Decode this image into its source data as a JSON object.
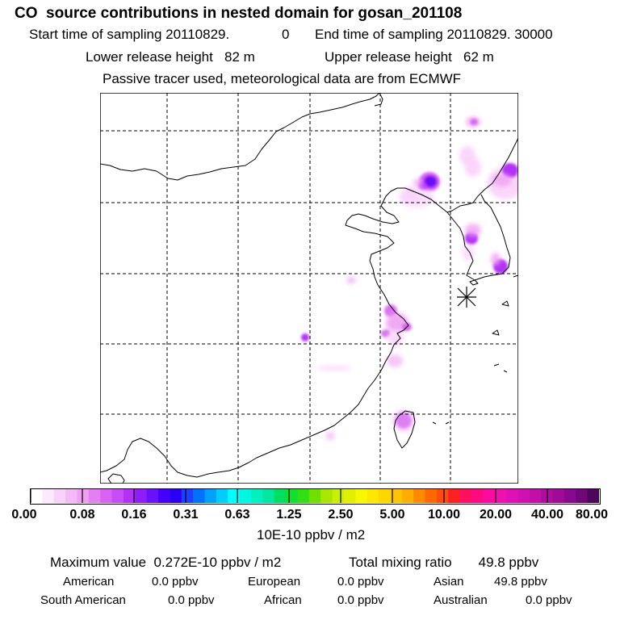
{
  "title": "CO  source contributions in nested domain for gosan_201108",
  "header": {
    "start_label": "Start time of sampling 20110829.",
    "start_hour": "0",
    "end_label": "End time of sampling 20110829. 30000",
    "lower_release": "Lower release height   82 m",
    "upper_release": "Upper release height   62 m",
    "tracer_note": "Passive tracer used, meteorological data are from ECMWF"
  },
  "colorbar": {
    "tick_labels": [
      "0.00",
      "0.08",
      "0.16",
      "0.31",
      "0.63",
      "1.25",
      "2.50",
      "5.00",
      "10.00",
      "20.00",
      "40.00",
      "80.00"
    ],
    "colors": [
      "#ffffff",
      "#fde9fd",
      "#f9d2fa",
      "#f4b9f6",
      "#efa0f2",
      "#e37ff0",
      "#d863f2",
      "#c84cf5",
      "#b330f8",
      "#8f1cfa",
      "#6a10fb",
      "#4500fc",
      "#2800f8",
      "#1b40ff",
      "#0072ff",
      "#00a0ff",
      "#00ccff",
      "#00ffff",
      "#00f8e0",
      "#00f0c0",
      "#00e8a0",
      "#00e060",
      "#10e030",
      "#30e010",
      "#70e000",
      "#a8e800",
      "#c8f000",
      "#e0f000",
      "#f8f800",
      "#ffe800",
      "#ffd800",
      "#ffc400",
      "#ffae00",
      "#ff8a00",
      "#ff6a00",
      "#ff4a10",
      "#ff2020",
      "#ff1060",
      "#ff0a80",
      "#ff0aa0",
      "#f010b0",
      "#e010b8",
      "#d010b0",
      "#c010a8",
      "#b00da0",
      "#a00a98",
      "#880890",
      "#700678",
      "#50045c"
    ],
    "units": "10E-10 ppbv / m2"
  },
  "stats": {
    "maximum": "Maximum value  0.272E-10 ppbv / m2",
    "total": "Total mixing ratio       49.8 ppbv"
  },
  "contributions": [
    {
      "name": "American",
      "value": "0.0 ppbv"
    },
    {
      "name": "European",
      "value": "0.0 ppbv"
    },
    {
      "name": "Asian",
      "value": "49.8 ppbv"
    },
    {
      "name": "South American",
      "value": "0.0 ppbv"
    },
    {
      "name": "African",
      "value": "0.0 ppbv"
    },
    {
      "name": "Australian",
      "value": "0.0 ppbv"
    }
  ],
  "map": {
    "receptor_symbol": "asterisk",
    "plume_colors": [
      "#f9d2fa",
      "#efa0f2",
      "#d863f2",
      "#b330f8",
      "#6a10fb"
    ]
  }
}
